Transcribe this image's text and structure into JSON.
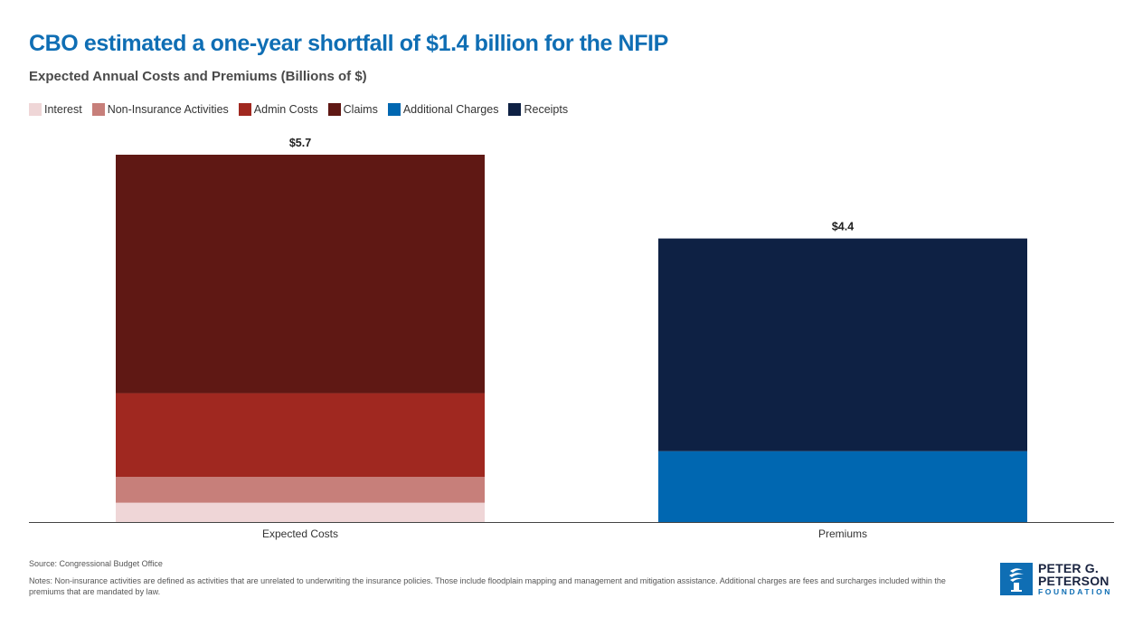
{
  "title": "CBO estimated a one-year shortfall of $1.4 billion for the NFIP",
  "subtitle": "Expected Annual Costs and Premiums (Billions of $)",
  "legend": [
    {
      "label": "Interest",
      "color": "#efd6d7"
    },
    {
      "label": "Non-Insurance Activities",
      "color": "#c77f7a"
    },
    {
      "label": "Admin Costs",
      "color": "#a02820"
    },
    {
      "label": "Claims",
      "color": "#5f1814"
    },
    {
      "label": "Additional Charges",
      "color": "#0067b1"
    },
    {
      "label": "Receipts",
      "color": "#0e2144"
    }
  ],
  "chart_data": {
    "type": "bar",
    "stacked": true,
    "title": "CBO estimated a one-year shortfall of $1.4 billion for the NFIP",
    "subtitle": "Expected Annual Costs and Premiums (Billions of $)",
    "categories": [
      "Expected Costs",
      "Premiums"
    ],
    "series": [
      {
        "name": "Interest",
        "values": [
          0.3,
          0
        ],
        "color": "#efd6d7"
      },
      {
        "name": "Non-Insurance Activities",
        "values": [
          0.4,
          0
        ],
        "color": "#c77f7a"
      },
      {
        "name": "Admin Costs",
        "values": [
          1.3,
          0
        ],
        "color": "#a02820"
      },
      {
        "name": "Claims",
        "values": [
          3.7,
          0
        ],
        "color": "#5f1814"
      },
      {
        "name": "Additional Charges",
        "values": [
          0,
          1.1
        ],
        "color": "#0067b1"
      },
      {
        "name": "Receipts",
        "values": [
          0,
          3.3
        ],
        "color": "#0e2144"
      }
    ],
    "totals": [
      "$5.7",
      "$4.4"
    ],
    "ylim": [
      0,
      5.7
    ],
    "xlabel": "",
    "ylabel": "",
    "grid": false
  },
  "source": "Source: Congressional Budget Office",
  "notes": "Notes: Non-insurance activities are defined as activities that are unrelated to underwriting the insurance policies. Those include floodplain mapping and management and mitigation assistance. Additional charges are fees and surcharges included within the premiums that are mandated by law.",
  "logo": {
    "line1": "PETER G.",
    "line2": "PETERSON",
    "line3": "FOUNDATION"
  }
}
